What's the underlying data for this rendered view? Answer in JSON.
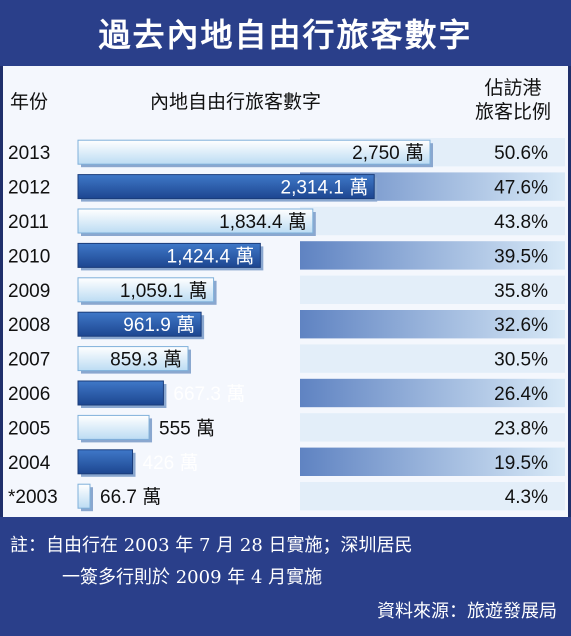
{
  "title": "過去內地自由行旅客數字",
  "headers": {
    "year": "年份",
    "visitors": "內地自由行旅客數字",
    "share_line1": "佔訪港",
    "share_line2": "旅客比例"
  },
  "chart_data": {
    "type": "bar",
    "orientation": "horizontal",
    "categories": [
      "2013",
      "2012",
      "2011",
      "2010",
      "2009",
      "2008",
      "2007",
      "2006",
      "2005",
      "2004",
      "*2003"
    ],
    "values": [
      2750,
      2314.1,
      1834.4,
      1424.4,
      1059.1,
      961.9,
      859.3,
      667.3,
      555,
      426,
      66.7
    ],
    "value_labels": [
      "2,750 萬",
      "2,314.1 萬",
      "1,834.4 萬",
      "1,424.4 萬",
      "1,059.1 萬",
      "961.9 萬",
      "859.3 萬",
      "667.3 萬",
      "555 萬",
      "426 萬",
      "66.7 萬"
    ],
    "share_labels": [
      "50.6%",
      "47.6%",
      "43.8%",
      "39.5%",
      "35.8%",
      "32.6%",
      "30.5%",
      "26.4%",
      "23.8%",
      "19.5%",
      "4.3%"
    ],
    "colors": {
      "light_bar": "#cfe6f7",
      "dark_bar": "#2b5aa6",
      "share_band_light": "#d8e9f7",
      "share_band_dark": "#5f83c2"
    }
  },
  "notes": {
    "line1": "註：自由行在 2003 年 7 月 28 日實施；深圳居民",
    "line2": "一簽多行則於 2009 年 4 月實施",
    "source": "資料來源：旅遊發展局"
  }
}
